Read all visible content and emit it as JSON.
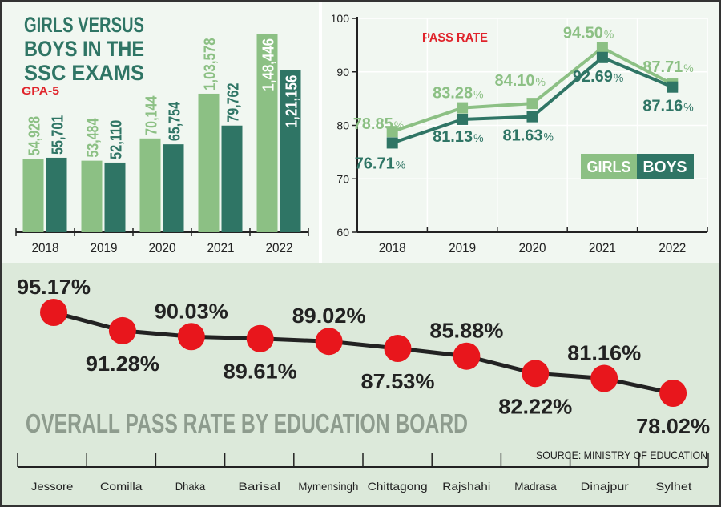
{
  "colors": {
    "girls": "#8cc084",
    "boys": "#2f7565",
    "title": "#2f7565",
    "accent_red": "#e0242b",
    "dot_red": "#e8161c",
    "top_bg": "#f1f7f1",
    "bottom_bg": "#dce9da",
    "board_title": "#8e9c8e"
  },
  "chart_data": [
    {
      "type": "bar",
      "title": "GIRLS VERSUS BOYS IN THE SSC EXAMS",
      "title_lines": [
        "GIRLS VERSUS",
        "BOYS IN THE",
        "SSC EXAMS"
      ],
      "subtitle": "GPA-5",
      "categories": [
        "2018",
        "2019",
        "2020",
        "2021",
        "2022"
      ],
      "series": [
        {
          "key": "girls",
          "values": [
            54928,
            53484,
            70144,
            103578,
            148446
          ],
          "labels": [
            "54,928",
            "53,484",
            "70,144",
            "1,03,578",
            "1,48,446"
          ]
        },
        {
          "key": "boys",
          "values": [
            55701,
            52110,
            65754,
            79762,
            121156
          ],
          "labels": [
            "55,701",
            "52,110",
            "65,754",
            "79,762",
            "1,21,156"
          ]
        }
      ],
      "grid": false
    },
    {
      "type": "line",
      "title": "PASS RATE",
      "categories": [
        "2018",
        "2019",
        "2020",
        "2021",
        "2022"
      ],
      "ylim": [
        60,
        100
      ],
      "yticks": [
        "60",
        "70",
        "80",
        "90",
        "100"
      ],
      "series": [
        {
          "name": "GIRLS",
          "key": "girls",
          "values": [
            78.85,
            83.28,
            84.1,
            94.5,
            87.71
          ],
          "labels": [
            "78.85",
            "83.28",
            "84.10",
            "94.50",
            "87.71"
          ]
        },
        {
          "name": "BOYS",
          "key": "boys",
          "values": [
            76.71,
            81.13,
            81.63,
            92.69,
            87.16
          ],
          "labels": [
            "76.71",
            "81.13",
            "81.63",
            "92.69",
            "87.16"
          ]
        }
      ],
      "unit": "%",
      "grid": true,
      "legend": "bottom-right"
    },
    {
      "type": "line",
      "title": "OVERALL PASS RATE BY EDUCATION BOARD",
      "categories": [
        "Jessore",
        "Comilla",
        "Dhaka",
        "Barisal",
        "Mymensingh",
        "Chittagong",
        "Rajshahi",
        "Madrasa",
        "Dinajpur",
        "Sylhet"
      ],
      "values": [
        95.17,
        91.28,
        90.03,
        89.61,
        89.02,
        87.53,
        85.88,
        82.22,
        81.16,
        78.02
      ],
      "labels": [
        "95.17%",
        "91.28%",
        "90.03%",
        "89.61%",
        "89.02%",
        "87.53%",
        "85.88%",
        "82.22%",
        "81.16%",
        "78.02%"
      ],
      "source": "SOURCE: MINISTRY OF EDUCATION",
      "grid": false
    }
  ]
}
